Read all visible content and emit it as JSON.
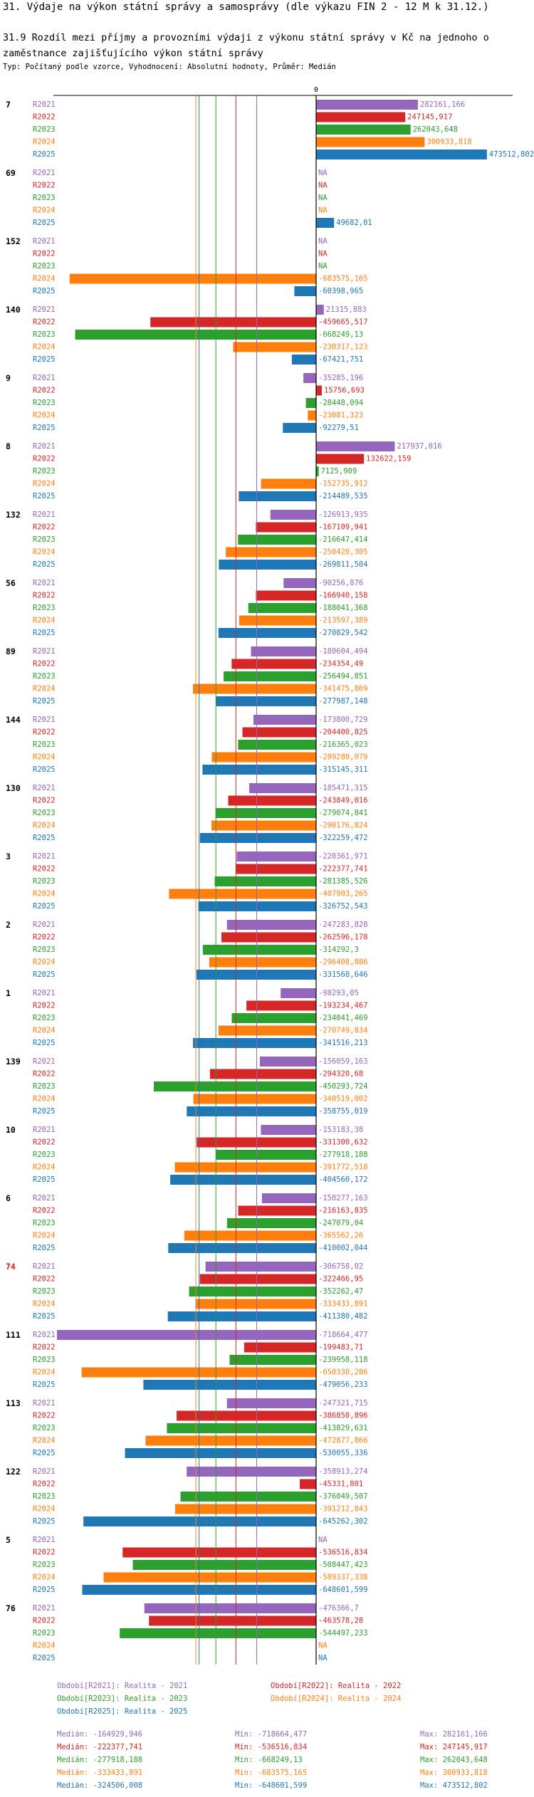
{
  "header": {
    "title": "31. Výdaje na výkon státní správy a samosprávy (dle výkazu FIN 2 - 12 M k 31.12.)",
    "subtitle": "31.9 Rozdíl mezi příjmy a provozními výdaji z výkonu státní správy v Kč na jednoho o zaměstnance zajišťujícího výkon státní správy",
    "note": "Typ: Počítaný podle vzorce, Vyhodnocení: Absolutní hodnoty, Průměr: Medián"
  },
  "chart_data": {
    "type": "bar",
    "orientation": "horizontal",
    "zero_label": "0",
    "xlim": [
      -718664.477,
      473512.802
    ],
    "series": [
      {
        "name": "R2021",
        "color": "#9467bd"
      },
      {
        "name": "R2022",
        "color": "#d62728"
      },
      {
        "name": "R2023",
        "color": "#2ca02c"
      },
      {
        "name": "R2024",
        "color": "#ff7f0e"
      },
      {
        "name": "R2025",
        "color": "#1f77b4"
      }
    ],
    "groups": [
      {
        "label": "7",
        "highlight": false,
        "values": [
          282161.166,
          247145.917,
          262043.648,
          300933.818,
          473512.802
        ],
        "labels": [
          "282161,166",
          "247145,917",
          "262043,648",
          "300933,818",
          "473512,802"
        ]
      },
      {
        "label": "69",
        "highlight": false,
        "values": [
          null,
          null,
          null,
          null,
          49682.01
        ],
        "labels": [
          "NA",
          "NA",
          "NA",
          "NA",
          "49682,01"
        ]
      },
      {
        "label": "152",
        "highlight": false,
        "values": [
          null,
          null,
          null,
          -683575.165,
          -60398.965
        ],
        "labels": [
          "NA",
          "NA",
          "NA",
          "-683575,165",
          "-60398,965"
        ]
      },
      {
        "label": "140",
        "highlight": false,
        "values": [
          21315.883,
          -459665.517,
          -668249.13,
          -230317.123,
          -67421.751
        ],
        "labels": [
          "21315,883",
          "-459665,517",
          "-668249,13",
          "-230317,123",
          "-67421,751"
        ]
      },
      {
        "label": "9",
        "highlight": false,
        "values": [
          -35285.196,
          15756.693,
          -28448.094,
          -23081.323,
          -92279.51
        ],
        "labels": [
          "-35285,196",
          "15756,693",
          "-28448,094",
          "-23081,323",
          "-92279,51"
        ]
      },
      {
        "label": "8",
        "highlight": false,
        "values": [
          217937.016,
          132622.159,
          7125.909,
          -152735.912,
          -214489.535
        ],
        "labels": [
          "217937,016",
          "132622,159",
          "7125,909",
          "-152735,912",
          "-214489,535"
        ]
      },
      {
        "label": "132",
        "highlight": false,
        "values": [
          -126913.935,
          -167109.941,
          -216647.414,
          -250420.305,
          -269811.504
        ],
        "labels": [
          "-126913,935",
          "-167109,941",
          "-216647,414",
          "-250420,305",
          "-269811,504"
        ]
      },
      {
        "label": "56",
        "highlight": false,
        "values": [
          -90256.876,
          -166940.158,
          -188041.368,
          -213597.389,
          -270829.542
        ],
        "labels": [
          "-90256,876",
          "-166940,158",
          "-188041,368",
          "-213597,389",
          "-270829,542"
        ]
      },
      {
        "label": "89",
        "highlight": false,
        "values": [
          -180604.494,
          -234354.49,
          -256494.851,
          -341475.869,
          -277987.148
        ],
        "labels": [
          "-180604,494",
          "-234354,49",
          "-256494,851",
          "-341475,869",
          "-277987,148"
        ]
      },
      {
        "label": "144",
        "highlight": false,
        "values": [
          -173800.729,
          -204400.825,
          -216365.023,
          -289280.079,
          -315145.311
        ],
        "labels": [
          "-173800,729",
          "-204400,825",
          "-216365,023",
          "-289280,079",
          "-315145,311"
        ]
      },
      {
        "label": "130",
        "highlight": false,
        "values": [
          -185471.315,
          -243849.016,
          -279074.841,
          -290176.824,
          -322259.472
        ],
        "labels": [
          "-185471,315",
          "-243849,016",
          "-279074,841",
          "-290176,824",
          "-322259,472"
        ]
      },
      {
        "label": "3",
        "highlight": false,
        "values": [
          -220361.971,
          -222377.741,
          -281385.526,
          -407903.265,
          -326752.543
        ],
        "labels": [
          "-220361,971",
          "-222377,741",
          "-281385,526",
          "-407903,265",
          "-326752,543"
        ]
      },
      {
        "label": "2",
        "highlight": false,
        "values": [
          -247283.828,
          -262596.178,
          -314292.3,
          -296408.886,
          -331568.646
        ],
        "labels": [
          "-247283,828",
          "-262596,178",
          "-314292,3",
          "-296408,886",
          "-331568,646"
        ]
      },
      {
        "label": "1",
        "highlight": false,
        "values": [
          -98293.05,
          -193234.467,
          -234041.469,
          -270749.834,
          -341516.213
        ],
        "labels": [
          "-98293,05",
          "-193234,467",
          "-234041,469",
          "-270749,834",
          "-341516,213"
        ]
      },
      {
        "label": "139",
        "highlight": false,
        "values": [
          -156059.163,
          -294320.68,
          -450293.724,
          -340519.002,
          -358755.019
        ],
        "labels": [
          "-156059,163",
          "-294320,68",
          "-450293,724",
          "-340519,002",
          "-358755,019"
        ]
      },
      {
        "label": "10",
        "highlight": false,
        "values": [
          -153183.38,
          -331300.632,
          -277918.188,
          -391772.518,
          -404560.172
        ],
        "labels": [
          "-153183,38",
          "-331300,632",
          "-277918,188",
          "-391772,518",
          "-404560,172"
        ]
      },
      {
        "label": "6",
        "highlight": false,
        "values": [
          -150277.163,
          -216163.835,
          -247079.04,
          -365562.26,
          -410002.044
        ],
        "labels": [
          "-150277,163",
          "-216163,835",
          "-247079,04",
          "-365562,26",
          "-410002,044"
        ]
      },
      {
        "label": "74",
        "highlight": true,
        "values": [
          -306758.02,
          -322466.95,
          -352262.47,
          -333433.891,
          -411380.482
        ],
        "labels": [
          "-306758,02",
          "-322466,95",
          "-352262,47",
          "-333433,891",
          "-411380,482"
        ]
      },
      {
        "label": "111",
        "highlight": false,
        "values": [
          -718664.477,
          -199483.71,
          -239958.118,
          -650330.286,
          -479056.233
        ],
        "labels": [
          "-718664,477",
          "-199483,71",
          "-239958,118",
          "-650330,286",
          "-479056,233"
        ]
      },
      {
        "label": "113",
        "highlight": false,
        "values": [
          -247321.715,
          -386850.896,
          -413829.631,
          -472877.866,
          -530055.336
        ],
        "labels": [
          "-247321,715",
          "-386850,896",
          "-413829,631",
          "-472877,866",
          "-530055,336"
        ]
      },
      {
        "label": "122",
        "highlight": false,
        "values": [
          -358913.274,
          -45331.801,
          -376049.507,
          -391212.843,
          -645262.302
        ],
        "labels": [
          "-358913,274",
          "-45331,801",
          "-376049,507",
          "-391212,843",
          "-645262,302"
        ]
      },
      {
        "label": "5",
        "highlight": false,
        "values": [
          null,
          -536516.834,
          -508447.423,
          -589337.338,
          -648601.599
        ],
        "labels": [
          "NA",
          "-536516,834",
          "-508447,423",
          "-589337,338",
          "-648601,599"
        ]
      },
      {
        "label": "76",
        "highlight": false,
        "values": [
          -476366.7,
          -463578.28,
          -544497.233,
          null,
          null
        ],
        "labels": [
          "-476366,7",
          "-463578,28",
          "-544497,233",
          "NA",
          "NA"
        ]
      }
    ],
    "medians": [
      -164929.946,
      -222377.741,
      -277918.188,
      -333433.891,
      -324506.008
    ],
    "legend": [
      "Období[R2021]: Realita - 2021",
      "Období[R2022]: Realita - 2022",
      "Období[R2023]: Realita - 2023",
      "Období[R2024]: Realita - 2024",
      "Období[R2025]: Realita - 2025"
    ],
    "stats": [
      {
        "median": "Medián: -164929,946",
        "min": "Min: -718664,477",
        "max": "Max: 282161,166"
      },
      {
        "median": "Medián: -222377,741",
        "min": "Min: -536516,834",
        "max": "Max: 247145,917"
      },
      {
        "median": "Medián: -277918,188",
        "min": "Min: -668249,13",
        "max": "Max: 262043,648"
      },
      {
        "median": "Medián: -333433,891",
        "min": "Min: -683575,165",
        "max": "Max: 300933,818"
      },
      {
        "median": "Medián: -324506,008",
        "min": "Min: -648601,599",
        "max": "Max: 473512,802"
      }
    ]
  }
}
